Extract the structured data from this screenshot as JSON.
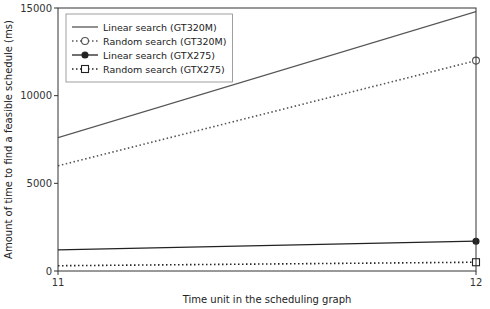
{
  "chart_data": {
    "type": "line",
    "x": [
      11,
      12
    ],
    "series": [
      {
        "name": "Linear search (GT320M)",
        "color": "#555555",
        "values": [
          7600,
          14800
        ],
        "line_style": "solid"
      },
      {
        "name": "Random search (GT320M)",
        "color": "#555555",
        "values": [
          6000,
          12000
        ],
        "line_style": "dotted",
        "marker": "open-circle"
      },
      {
        "name": "Linear search (GTX275)",
        "color": "#222222",
        "values": [
          1200,
          1700
        ],
        "line_style": "solid",
        "marker": "circle"
      },
      {
        "name": "Random search (GTX275)",
        "color": "#222222",
        "values": [
          300,
          500
        ],
        "line_style": "dotted",
        "marker": "open-square"
      }
    ],
    "x_label": "Time unit in the scheduling graph",
    "y_label": "Amount of time to find a feasible schedule (ms)",
    "xlim": [
      11,
      12
    ],
    "ylim": [
      0,
      15000
    ],
    "xticks": [
      11,
      12
    ],
    "yticks": [
      0,
      5000,
      10000,
      15000
    ],
    "legend": "upper-left"
  }
}
